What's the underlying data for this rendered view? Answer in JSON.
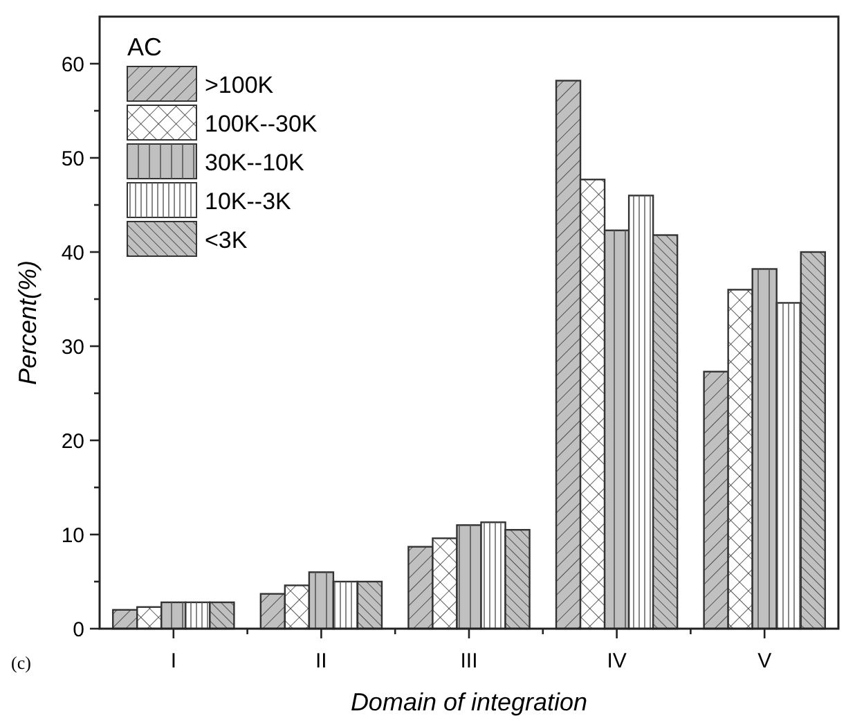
{
  "chart_data": {
    "type": "bar",
    "xlabel": "Domain of integration",
    "ylabel": "Percent(%)",
    "legend_title": "AC",
    "categories": [
      "I",
      "II",
      "III",
      "IV",
      "V"
    ],
    "series": [
      {
        "name": ">100K",
        "color": "#c0c0c0",
        "values": [
          2.0,
          3.7,
          8.7,
          58.2,
          27.3
        ]
      },
      {
        "name": "100K--30K",
        "color": "#ffffff",
        "values": [
          2.3,
          4.6,
          9.6,
          47.7,
          36.0
        ]
      },
      {
        "name": "30K--10K",
        "color": "#c0c0c0",
        "values": [
          2.8,
          6.0,
          11.0,
          42.3,
          38.2
        ]
      },
      {
        "name": "10K--3K",
        "color": "#ffffff",
        "values": [
          2.8,
          5.0,
          11.3,
          46.0,
          34.6
        ]
      },
      {
        "name": "<3K",
        "color": "#c0c0c0",
        "values": [
          2.8,
          5.0,
          10.5,
          41.8,
          40.0
        ]
      }
    ],
    "ylim": [
      0,
      65
    ],
    "yticks": [
      0,
      {
        "value": 5,
        "label": null
      },
      10,
      {
        "value": 15,
        "label": null
      },
      20,
      {
        "value": 25,
        "label": null
      },
      30,
      {
        "value": 35,
        "label": null
      },
      40,
      {
        "value": 45,
        "label": null
      },
      50,
      {
        "value": 55,
        "label": null
      },
      60
    ],
    "legend": "top left",
    "grid": false,
    "annotations": [
      "(c)"
    ]
  }
}
